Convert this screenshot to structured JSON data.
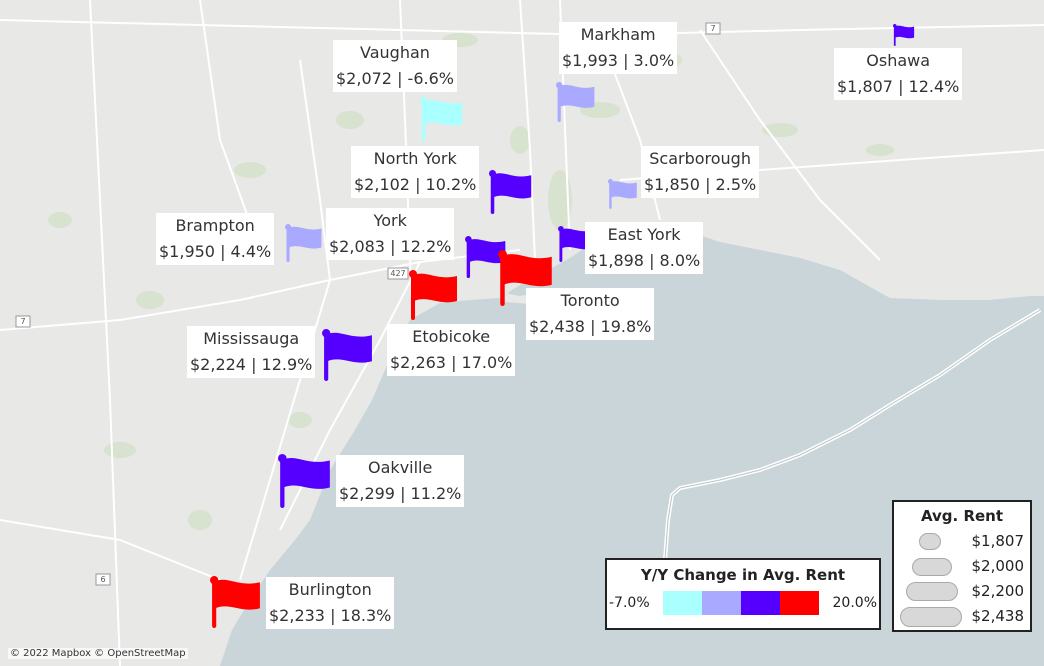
{
  "colors": {
    "land": "#e8e8e7",
    "water": "#c9d5d8",
    "road": "#ffffff",
    "park": "#d7e2cf",
    "scale_low": "#aaffff",
    "scale_mid1": "#a9a9ff",
    "scale_mid2": "#5500ff",
    "scale_high": "#ff0000"
  },
  "cities": [
    {
      "name": "Vaughan",
      "rent": "$2,072",
      "change": "-6.6%",
      "color": "#aaffff"
    },
    {
      "name": "Markham",
      "rent": "$1,993",
      "change": "3.0%",
      "color": "#a9a9ff"
    },
    {
      "name": "Oshawa",
      "rent": "$1,807",
      "change": "12.4%",
      "color": "#5500ff"
    },
    {
      "name": "North York",
      "rent": "$2,102",
      "change": "10.2%",
      "color": "#5500ff"
    },
    {
      "name": "Scarborough",
      "rent": "$1,850",
      "change": "2.5%",
      "color": "#a9a9ff"
    },
    {
      "name": "Brampton",
      "rent": "$1,950",
      "change": "4.4%",
      "color": "#a9a9ff"
    },
    {
      "name": "York",
      "rent": "$2,083",
      "change": "12.2%",
      "color": "#5500ff"
    },
    {
      "name": "East York",
      "rent": "$1,898",
      "change": "8.0%",
      "color": "#5500ff"
    },
    {
      "name": "Toronto",
      "rent": "$2,438",
      "change": "19.8%",
      "color": "#ff0000"
    },
    {
      "name": "Mississauga",
      "rent": "$2,224",
      "change": "12.9%",
      "color": "#5500ff"
    },
    {
      "name": "Etobicoke",
      "rent": "$2,263",
      "change": "17.0%",
      "color": "#ff0000"
    },
    {
      "name": "Oakville",
      "rent": "$2,299",
      "change": "11.2%",
      "color": "#5500ff"
    },
    {
      "name": "Burlington",
      "rent": "$2,233",
      "change": "18.3%",
      "color": "#ff0000"
    }
  ],
  "highway_shields": [
    "7",
    "427",
    "7",
    "6"
  ],
  "legend_color": {
    "title": "Y/Y Change in Avg. Rent",
    "low": "-7.0%",
    "high": "20.0%",
    "swatches": [
      "#aaffff",
      "#a9a9ff",
      "#5500ff",
      "#ff0000"
    ]
  },
  "legend_size": {
    "title": "Avg. Rent",
    "items": [
      "$1,807",
      "$2,000",
      "$2,200",
      "$2,438"
    ]
  },
  "attribution": "© 2022 Mapbox © OpenStreetMap"
}
